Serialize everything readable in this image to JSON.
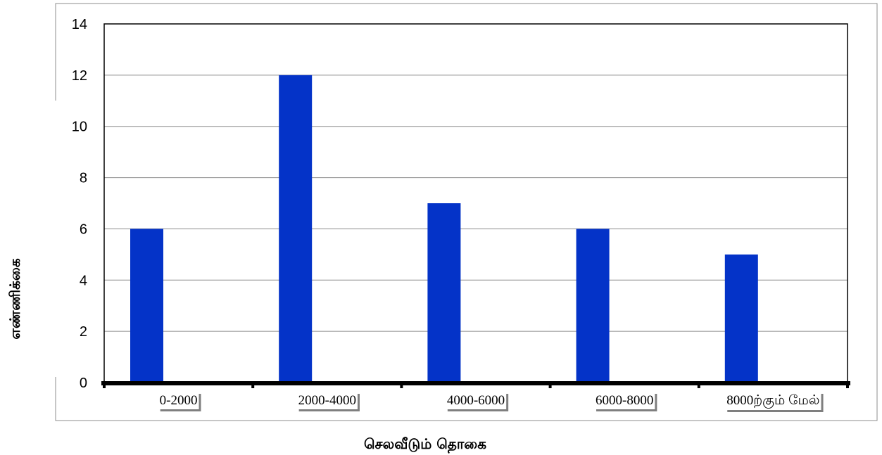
{
  "chart_data": {
    "type": "bar",
    "categories": [
      "0-2000",
      "2000-4000",
      "4000-6000",
      "6000-8000",
      "8000ற்கும்  மேல்"
    ],
    "values": [
      6,
      12,
      7,
      6,
      5
    ],
    "title": "",
    "xlabel": "செலவீடும்  தொகை",
    "ylabel": "எண்ணிக்கை",
    "ylim": [
      0,
      14
    ],
    "yticks": [
      0,
      2,
      4,
      6,
      8,
      10,
      12,
      14
    ],
    "grid": true,
    "legend": "none",
    "colors": {
      "bar": "#0433c8",
      "grid": "#8c8c8c",
      "axis": "#000000",
      "frame": "#8c8c8c"
    }
  }
}
